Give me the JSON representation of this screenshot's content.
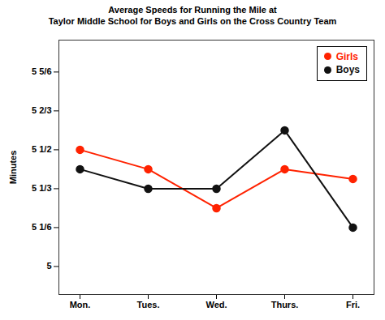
{
  "chart_data": {
    "type": "line",
    "title": "Average Speeds for Running the Mile at\nTaylor Middle School for Boys and Girls on the Cross Country Team",
    "ylabel": "Minutes",
    "categories": [
      "Mon.",
      "Tues.",
      "Wed.",
      "Thurs.",
      "Fri."
    ],
    "series": [
      {
        "name": "Girls",
        "color": "#ff2200",
        "marker": "circle",
        "values": [
          5.5,
          5.4167,
          5.25,
          5.4167,
          5.375
        ]
      },
      {
        "name": "Boys",
        "color": "#111111",
        "marker": "circle",
        "values": [
          5.4167,
          5.3333,
          5.3333,
          5.5833,
          5.1667
        ]
      }
    ],
    "ylim": [
      4.88,
      5.97
    ],
    "yticks": [
      5,
      {
        "value": 5.1667,
        "label": "5 1/6"
      },
      {
        "value": 5.3333,
        "label": "5 1/3"
      },
      {
        "value": 5.5,
        "label": "5 1/2"
      },
      {
        "value": 5.6667,
        "label": "5 2/3"
      },
      {
        "value": 5.8333,
        "label": "5 5/6"
      }
    ],
    "grid": false,
    "legend": "upper right"
  }
}
